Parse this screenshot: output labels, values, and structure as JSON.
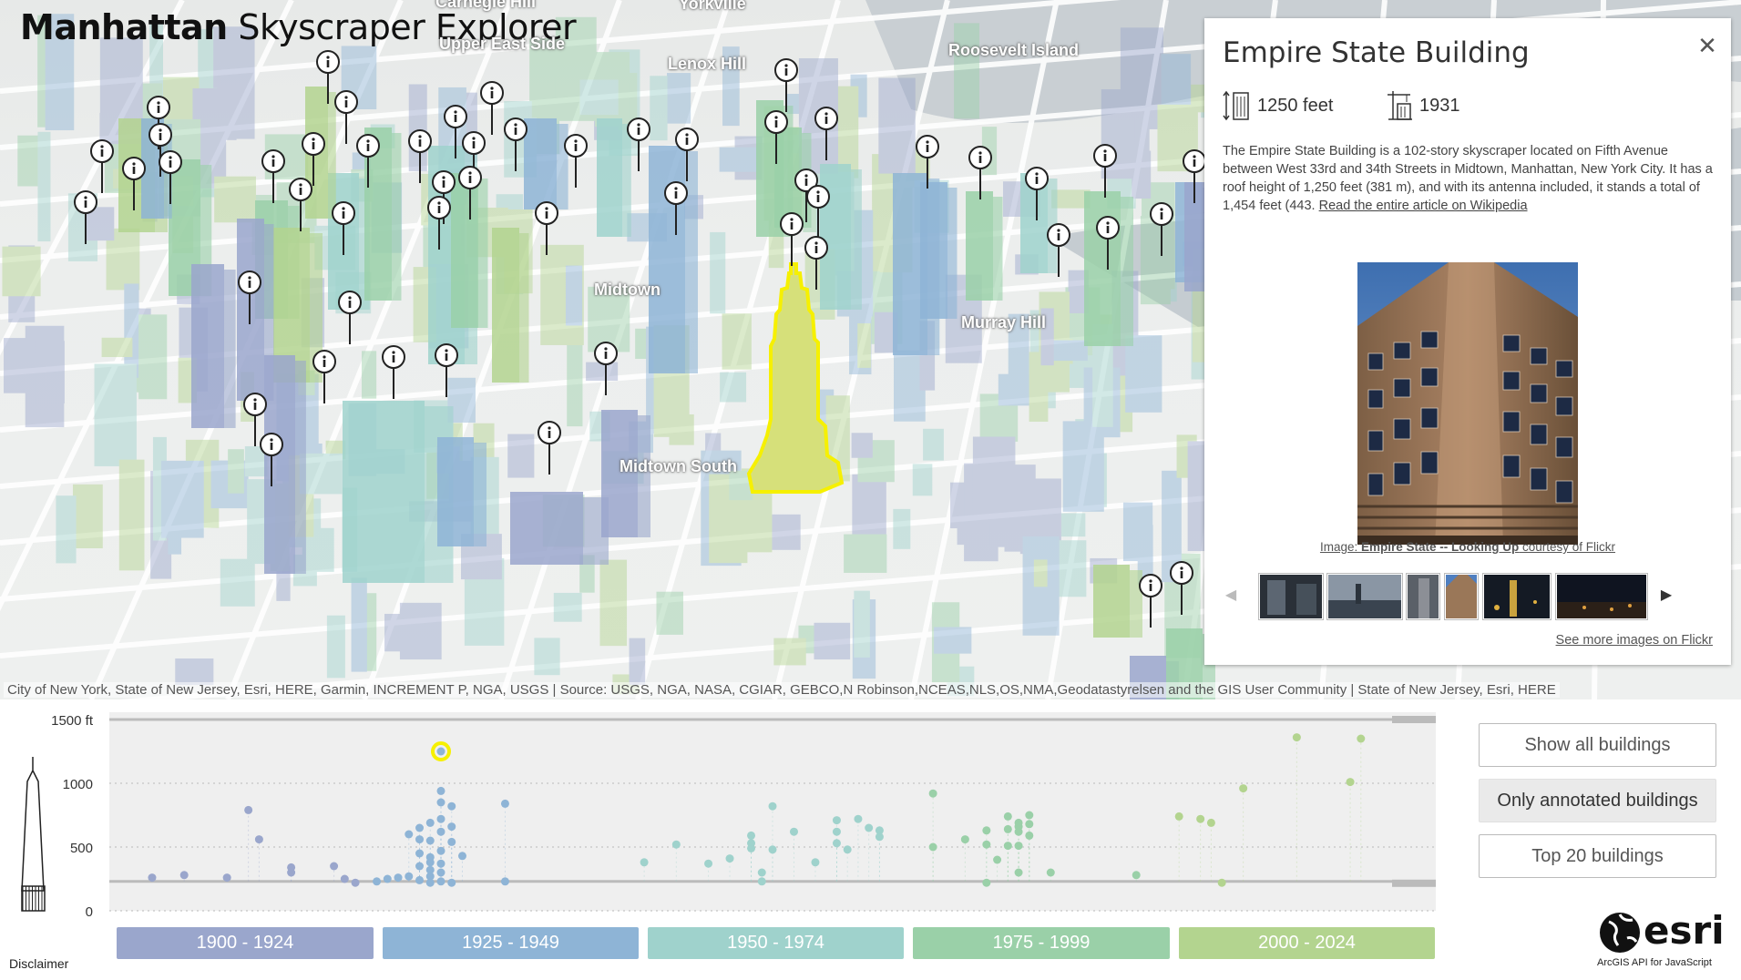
{
  "app": {
    "title_bold": "Manhattan",
    "title_light": "Skyscraper Explorer"
  },
  "map": {
    "labels": [
      "Carnegie Hill",
      "Yorkville",
      "Upper East Side",
      "Lenox Hill",
      "Roosevelt Island",
      "Midtown",
      "Murray Hill",
      "Midtown South"
    ],
    "attribution": "City of New York, State of New Jersey, Esri, HERE, Garmin, INCREMENT P, NGA, USGS | Source: USGS, NGA, NASA, CGIAR, GEBCO,N Robinson,NCEAS,NLS,OS,NMA,Geodatastyrelsen and the GIS User Community | State of New Jersey, Esri, HERE",
    "colors": {
      "era_1900": "#9aa6cc",
      "era_1925": "#8eb4d6",
      "era_1950": "#9fd2cc",
      "era_1975": "#9ad0a8",
      "era_2000": "#b3d48f",
      "selected": "#f6f000"
    },
    "info_icon": "info-icon"
  },
  "popup": {
    "title": "Empire State Building",
    "height_value": "1250 feet",
    "year_value": "1931",
    "description": "The Empire State Building is a 102-story skyscraper located on Fifth Avenue between West 33rd and 34th Streets in Midtown, Manhattan, New York City. It has a roof height of 1,250 feet (381 m), and with its antenna included, it stands a total of 1,454 feet (443. ",
    "read_more": "Read the entire article on Wikipedia",
    "caption_prefix": "Image: ",
    "caption_title": "Empire State -- Looking Up",
    "caption_suffix": " courtesy of Flickr",
    "more_images": "See more images on Flickr",
    "close_icon": "close-icon",
    "height_icon": "building-height-icon",
    "year_icon": "construction-crane-icon"
  },
  "chart": {
    "filters": [
      "Show all buildings",
      "Only annotated buildings",
      "Top 20 buildings"
    ],
    "active_filter": "Only annotated buildings",
    "eras": [
      "1900 - 1924",
      "1925 - 1949",
      "1950 - 1974",
      "1975 - 1999",
      "2000 - 2024"
    ],
    "disclaimer": "Disclaimer",
    "esri_sub": "ArcGIS API for JavaScript"
  },
  "chart_data": {
    "type": "scatter",
    "title": "",
    "xlabel": "",
    "ylabel": "",
    "y_ticks": [
      "1500 ft",
      "1000",
      "500",
      "0"
    ],
    "ylim": [
      0,
      1500
    ],
    "xlim": [
      1900,
      2024
    ],
    "grid": true,
    "highlighted": {
      "name": "Empire State Building",
      "x": 1931,
      "y": 1250
    },
    "series": [
      {
        "values": [
          [
            1904,
            260
          ],
          [
            1907,
            280
          ],
          [
            1911,
            260
          ],
          [
            1913,
            790
          ],
          [
            1914,
            560
          ],
          [
            1917,
            340
          ],
          [
            1917,
            300
          ],
          [
            1921,
            350
          ],
          [
            1922,
            250
          ],
          [
            1923,
            220
          ],
          [
            1925,
            230
          ],
          [
            1926,
            250
          ],
          [
            1927,
            260
          ],
          [
            1928,
            600
          ],
          [
            1928,
            270
          ],
          [
            1929,
            350
          ],
          [
            1929,
            560
          ],
          [
            1929,
            450
          ],
          [
            1929,
            650
          ],
          [
            1929,
            240
          ],
          [
            1930,
            690
          ],
          [
            1930,
            550
          ],
          [
            1930,
            420
          ],
          [
            1930,
            380
          ],
          [
            1930,
            320
          ],
          [
            1930,
            270
          ],
          [
            1930,
            220
          ],
          [
            1931,
            940
          ],
          [
            1931,
            850
          ],
          [
            1931,
            720
          ],
          [
            1931,
            620
          ],
          [
            1931,
            470
          ],
          [
            1931,
            370
          ],
          [
            1931,
            300
          ],
          [
            1931,
            230
          ],
          [
            1932,
            820
          ],
          [
            1932,
            660
          ],
          [
            1932,
            540
          ],
          [
            1932,
            220
          ],
          [
            1933,
            430
          ],
          [
            1937,
            840
          ],
          [
            1937,
            230
          ],
          [
            1950,
            380
          ],
          [
            1953,
            520
          ],
          [
            1956,
            370
          ],
          [
            1958,
            410
          ],
          [
            1960,
            590
          ],
          [
            1960,
            530
          ],
          [
            1960,
            490
          ],
          [
            1961,
            300
          ],
          [
            1961,
            230
          ],
          [
            1962,
            820
          ],
          [
            1962,
            480
          ],
          [
            1964,
            620
          ],
          [
            1966,
            380
          ],
          [
            1968,
            710
          ],
          [
            1968,
            620
          ],
          [
            1968,
            530
          ],
          [
            1969,
            480
          ],
          [
            1970,
            720
          ],
          [
            1971,
            650
          ],
          [
            1972,
            630
          ],
          [
            1972,
            580
          ],
          [
            1977,
            920
          ],
          [
            1977,
            500
          ],
          [
            1980,
            560
          ],
          [
            1982,
            630
          ],
          [
            1982,
            520
          ],
          [
            1982,
            220
          ],
          [
            1983,
            400
          ],
          [
            1984,
            740
          ],
          [
            1984,
            640
          ],
          [
            1984,
            510
          ],
          [
            1985,
            690
          ],
          [
            1985,
            660
          ],
          [
            1985,
            620
          ],
          [
            1985,
            510
          ],
          [
            1985,
            300
          ],
          [
            1986,
            750
          ],
          [
            1986,
            680
          ],
          [
            1986,
            590
          ],
          [
            1988,
            300
          ],
          [
            1996,
            280
          ],
          [
            2000,
            740
          ],
          [
            2002,
            720
          ],
          [
            2003,
            690
          ],
          [
            2004,
            220
          ],
          [
            2006,
            960
          ],
          [
            2011,
            1360
          ],
          [
            2016,
            1010
          ],
          [
            2017,
            1350
          ]
        ]
      }
    ]
  }
}
